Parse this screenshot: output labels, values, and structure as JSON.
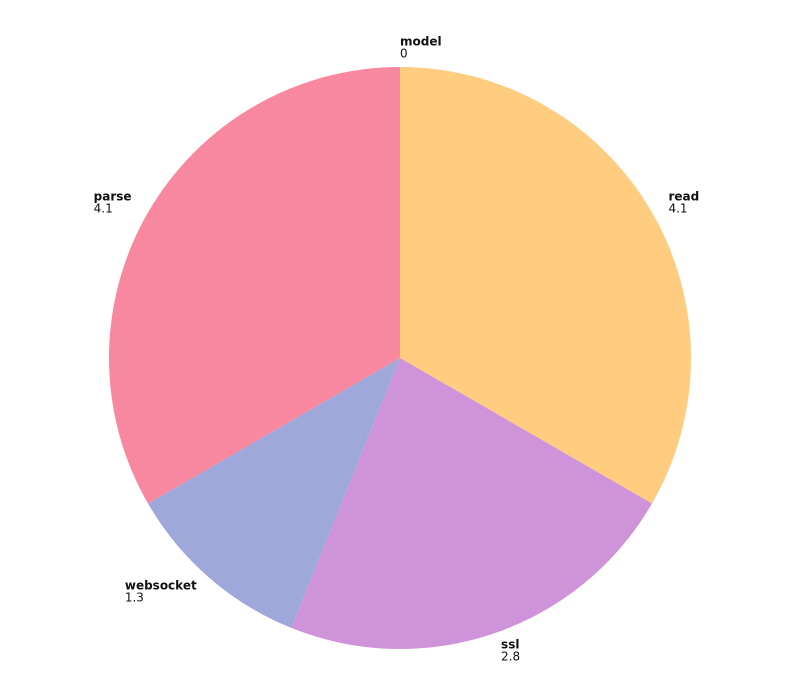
{
  "chart_data": {
    "type": "pie",
    "categories": [
      "model",
      "read",
      "ssl",
      "websocket",
      "parse"
    ],
    "values": [
      0,
      4.1,
      2.8,
      1.3,
      4.1
    ],
    "colors": [
      "#90caf9",
      "#ffcc80",
      "#ce93d8",
      "#9fa8da",
      "#f8889f"
    ]
  }
}
